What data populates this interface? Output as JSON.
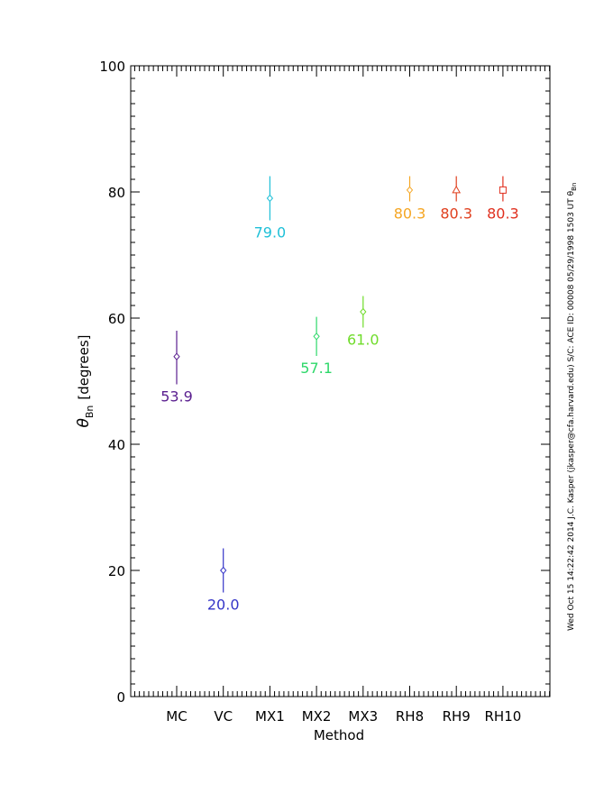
{
  "chart_data": {
    "type": "scatter",
    "title": "",
    "xlabel": "Method",
    "ylabel_symbol": "θ",
    "ylabel_subscript": "Bn",
    "ylabel_units": "[degrees]",
    "ylim": [
      0,
      100
    ],
    "yticks": [
      0,
      20,
      40,
      60,
      80,
      100
    ],
    "categories": [
      "MC",
      "VC",
      "MX1",
      "MX2",
      "MX3",
      "RH8",
      "RH9",
      "RH10"
    ],
    "points": [
      {
        "method": "MC",
        "value": 53.9,
        "err_low": 49.5,
        "err_high": 58.0,
        "label": "53.9",
        "color": "#5a1f8f",
        "marker": "diamond"
      },
      {
        "method": "VC",
        "value": 20.0,
        "err_low": 16.5,
        "err_high": 23.5,
        "label": "20.0",
        "color": "#3535c8",
        "marker": "diamond"
      },
      {
        "method": "MX1",
        "value": 79.0,
        "err_low": 75.5,
        "err_high": 82.5,
        "label": "79.0",
        "color": "#1fc0d8",
        "marker": "diamond"
      },
      {
        "method": "MX2",
        "value": 57.1,
        "err_low": 54.0,
        "err_high": 60.2,
        "label": "57.1",
        "color": "#2ed86a",
        "marker": "diamond"
      },
      {
        "method": "MX3",
        "value": 61.0,
        "err_low": 58.5,
        "err_high": 63.5,
        "label": "61.0",
        "color": "#6fdc2a",
        "marker": "diamond"
      },
      {
        "method": "RH8",
        "value": 80.3,
        "err_low": 78.5,
        "err_high": 82.5,
        "label": "80.3",
        "color": "#f5a623",
        "marker": "diamond"
      },
      {
        "method": "RH9",
        "value": 80.3,
        "err_low": 78.5,
        "err_high": 82.5,
        "label": "80.3",
        "color": "#e0401f",
        "marker": "triangle"
      },
      {
        "method": "RH10",
        "value": 80.3,
        "err_low": 78.5,
        "err_high": 82.5,
        "label": "80.3",
        "color": "#e0301f",
        "marker": "square"
      }
    ],
    "grid": false,
    "legend": "none"
  },
  "side_note": "Wed Oct 15 14:22:42 2014   J.C. Kasper (jkasper@cfa.harvard.edu)    S/C: ACE ID: 00008 05/29/1998  1503 UT θ",
  "side_note_subscript": "Bn"
}
